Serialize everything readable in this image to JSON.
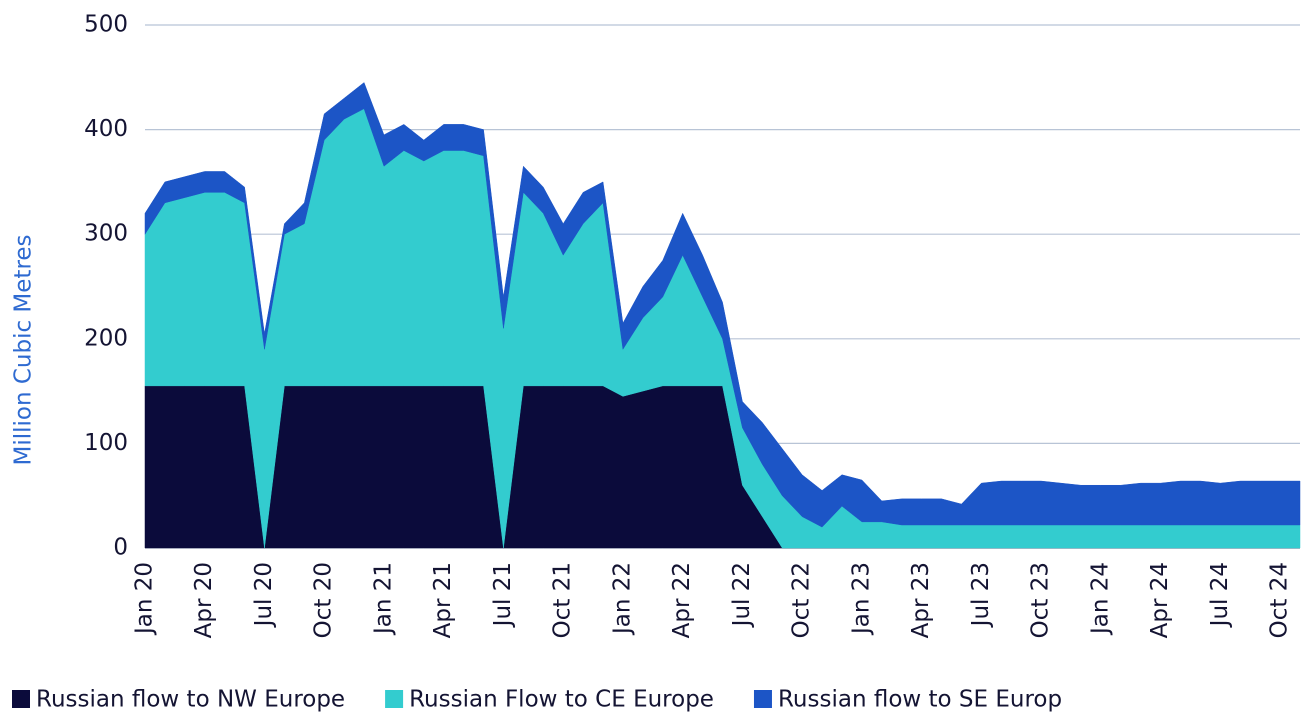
{
  "chart_data": {
    "type": "stacked-area",
    "y_label": "Million Cubic Metres",
    "x": [
      "2020-01",
      "2020-02",
      "2020-03",
      "2020-04",
      "2020-05",
      "2020-06",
      "2020-07",
      "2020-08",
      "2020-09",
      "2020-10",
      "2020-11",
      "2020-12",
      "2021-01",
      "2021-02",
      "2021-03",
      "2021-04",
      "2021-05",
      "2021-06",
      "2021-07",
      "2021-08",
      "2021-09",
      "2021-10",
      "2021-11",
      "2021-12",
      "2022-01",
      "2022-02",
      "2022-03",
      "2022-04",
      "2022-05",
      "2022-06",
      "2022-07",
      "2022-08",
      "2022-09",
      "2022-10",
      "2022-11",
      "2022-12",
      "2023-01",
      "2023-02",
      "2023-03",
      "2023-04",
      "2023-05",
      "2023-06",
      "2023-07",
      "2023-08",
      "2023-09",
      "2023-10",
      "2023-11",
      "2023-12",
      "2024-01",
      "2024-02",
      "2024-03",
      "2024-04",
      "2024-05",
      "2024-06",
      "2024-07",
      "2024-08",
      "2024-09",
      "2024-10",
      "2024-11"
    ],
    "series": [
      {
        "name": "Russian flow to NW Europe",
        "color": "#0b0b3b",
        "values": [
          155,
          155,
          155,
          155,
          155,
          155,
          0,
          155,
          155,
          155,
          155,
          155,
          155,
          155,
          155,
          155,
          155,
          155,
          0,
          155,
          155,
          155,
          155,
          155,
          145,
          150,
          155,
          155,
          155,
          155,
          60,
          30,
          0,
          0,
          0,
          0,
          0,
          0,
          0,
          0,
          0,
          0,
          0,
          0,
          0,
          0,
          0,
          0,
          0,
          0,
          0,
          0,
          0,
          0,
          0,
          0,
          0,
          0,
          0
        ]
      },
      {
        "name": "Russian Flow to CE Europe",
        "color": "#33cccf",
        "values": [
          145,
          175,
          180,
          185,
          185,
          175,
          190,
          145,
          155,
          235,
          255,
          265,
          210,
          225,
          215,
          225,
          225,
          220,
          210,
          185,
          165,
          125,
          155,
          175,
          45,
          70,
          85,
          125,
          85,
          45,
          55,
          50,
          50,
          30,
          20,
          40,
          25,
          25,
          22,
          22,
          22,
          22,
          22,
          22,
          22,
          22,
          22,
          22,
          22,
          22,
          22,
          22,
          22,
          22,
          22,
          22,
          22,
          22,
          22
        ]
      },
      {
        "name": "Russian flow to SE Europ",
        "color": "#1c55c6",
        "values": [
          20,
          20,
          20,
          20,
          20,
          15,
          15,
          10,
          20,
          25,
          20,
          25,
          30,
          25,
          20,
          25,
          25,
          25,
          30,
          25,
          25,
          30,
          30,
          20,
          25,
          30,
          35,
          40,
          40,
          35,
          25,
          40,
          45,
          40,
          35,
          30,
          40,
          20,
          25,
          25,
          25,
          20,
          40,
          42,
          42,
          42,
          40,
          38,
          38,
          38,
          40,
          40,
          42,
          42,
          40,
          42,
          42,
          42,
          42
        ]
      }
    ],
    "ylim": [
      0,
      500
    ],
    "yticks": [
      0,
      100,
      200,
      300,
      400,
      500
    ],
    "xticks": [
      {
        "value": "2020-01",
        "label": "Jan 20"
      },
      {
        "value": "2020-04",
        "label": "Apr 20"
      },
      {
        "value": "2020-07",
        "label": "Jul 20"
      },
      {
        "value": "2020-10",
        "label": "Oct 20"
      },
      {
        "value": "2021-01",
        "label": "Jan 21"
      },
      {
        "value": "2021-04",
        "label": "Apr 21"
      },
      {
        "value": "2021-07",
        "label": "Jul 21"
      },
      {
        "value": "2021-10",
        "label": "Oct 21"
      },
      {
        "value": "2022-01",
        "label": "Jan 22"
      },
      {
        "value": "2022-04",
        "label": "Apr 22"
      },
      {
        "value": "2022-07",
        "label": "Jul 22"
      },
      {
        "value": "2022-10",
        "label": "Oct 22"
      },
      {
        "value": "2023-01",
        "label": "Jan 23"
      },
      {
        "value": "2023-04",
        "label": "Apr 23"
      },
      {
        "value": "2023-07",
        "label": "Jul 23"
      },
      {
        "value": "2023-10",
        "label": "Oct 23"
      },
      {
        "value": "2024-01",
        "label": "Jan 24"
      },
      {
        "value": "2024-04",
        "label": "Apr 24"
      },
      {
        "value": "2024-07",
        "label": "Jul 24"
      },
      {
        "value": "2024-10",
        "label": "Oct 24"
      }
    ],
    "grid": true
  }
}
